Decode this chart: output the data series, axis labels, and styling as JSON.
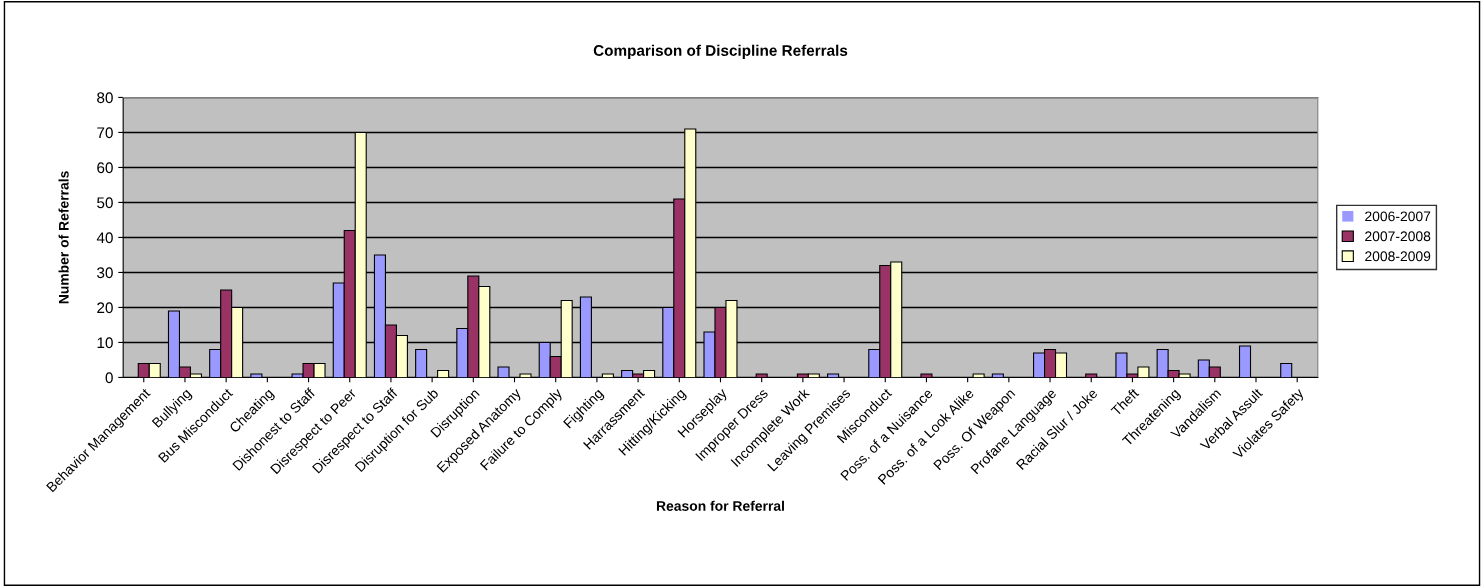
{
  "chart_data": {
    "type": "bar",
    "title": "Comparison of Discipline Referrals",
    "xlabel": "Reason for Referral",
    "ylabel": "Number of Referrals",
    "categories": [
      "Behavior Management",
      "Bullying",
      "Bus Misconduct",
      "Cheating",
      "Dishonest to Staff",
      "Disrespect to Peer",
      "Disrespect to Staff",
      "Disruption for Sub",
      "Disruption",
      "Exposed Anatomy",
      "Failure to Comply",
      "Fighting",
      "Harrassment",
      "Hitting/Kicking",
      "Horseplay",
      "Improper Dress",
      "Incomplete Work",
      "Leaving Premises",
      "Misconduct",
      "Poss. of a Nuisance",
      "Poss. of a Look Alike",
      "Poss. Of Weapon",
      "Profane Language",
      "Racial Slur / Joke",
      "Theft",
      "Threatening",
      "Vandalism",
      "Verbal Assult",
      "Violates Safety"
    ],
    "series": [
      {
        "name": "2006-2007",
        "color": "#9999ff",
        "values": [
          0,
          19,
          8,
          1,
          1,
          27,
          35,
          8,
          14,
          3,
          10,
          23,
          2,
          20,
          13,
          0,
          0,
          1,
          8,
          0,
          0,
          1,
          7,
          0,
          7,
          8,
          5,
          9,
          4
        ]
      },
      {
        "name": "2007-2008",
        "color": "#993366",
        "values": [
          4,
          3,
          25,
          0,
          4,
          42,
          15,
          0,
          29,
          0,
          6,
          0,
          1,
          51,
          20,
          1,
          1,
          0,
          32,
          1,
          0,
          0,
          8,
          1,
          1,
          2,
          3,
          0,
          0
        ]
      },
      {
        "name": "2008-2009",
        "color": "#ffffcc",
        "values": [
          4,
          1,
          20,
          0,
          4,
          70,
          12,
          2,
          26,
          1,
          22,
          1,
          2,
          71,
          22,
          0,
          1,
          0,
          33,
          0,
          1,
          0,
          7,
          0,
          3,
          1,
          0,
          0,
          0
        ]
      }
    ],
    "ylim": [
      0,
      80
    ],
    "yticks": [
      0,
      10,
      20,
      30,
      40,
      50,
      60,
      70,
      80
    ],
    "grid": "y",
    "legend": "right"
  }
}
